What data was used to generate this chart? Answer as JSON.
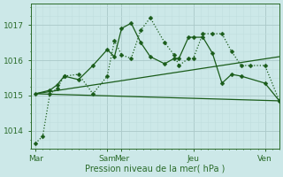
{
  "xlabel": "Pression niveau de la mer( hPa )",
  "background_color": "#cce8e8",
  "plot_bg_color": "#cce8e8",
  "grid_color_major": "#aac8c8",
  "grid_color_minor": "#c0dede",
  "text_color": "#2a6b2a",
  "ylim": [
    1013.5,
    1017.6
  ],
  "yticks": [
    1014,
    1015,
    1016,
    1017
  ],
  "day_labels": [
    "Mar",
    "Sam",
    "Mer",
    "Jeu",
    "Ven"
  ],
  "day_positions": [
    0,
    60,
    72,
    132,
    192
  ],
  "xlim": [
    -4,
    204
  ],
  "line_color": "#1a5c1a",
  "series": [
    {
      "x": [
        0,
        6,
        12,
        18,
        24,
        36,
        48,
        60,
        66,
        72,
        80,
        88,
        96,
        108,
        116,
        120,
        128,
        132,
        140,
        148,
        156,
        164,
        172,
        180,
        192,
        204
      ],
      "y": [
        1013.65,
        1013.85,
        1015.05,
        1015.2,
        1015.55,
        1015.6,
        1015.05,
        1015.55,
        1016.55,
        1016.15,
        1016.05,
        1016.85,
        1017.2,
        1016.5,
        1016.15,
        1015.85,
        1016.05,
        1016.05,
        1016.75,
        1016.75,
        1016.75,
        1016.25,
        1015.85,
        1015.85,
        1015.85,
        1014.85
      ],
      "linestyle": "dotted",
      "marker": "D",
      "markersize": 2.5
    },
    {
      "x": [
        0,
        12,
        18,
        24,
        36,
        48,
        60,
        66,
        72,
        80,
        88,
        96,
        108,
        116,
        120,
        128,
        132,
        140,
        148,
        156,
        164,
        172,
        192,
        204
      ],
      "y": [
        1015.05,
        1015.15,
        1015.3,
        1015.55,
        1015.45,
        1015.85,
        1016.3,
        1016.1,
        1016.9,
        1017.05,
        1016.5,
        1016.1,
        1015.9,
        1016.05,
        1016.05,
        1016.65,
        1016.65,
        1016.65,
        1016.2,
        1015.35,
        1015.6,
        1015.55,
        1015.35,
        1014.85
      ],
      "linestyle": "solid",
      "marker": "D",
      "markersize": 2.5
    },
    {
      "x": [
        0,
        204
      ],
      "y": [
        1015.05,
        1016.1
      ],
      "linestyle": "solid",
      "marker": null,
      "markersize": 0
    },
    {
      "x": [
        0,
        204
      ],
      "y": [
        1015.05,
        1014.85
      ],
      "linestyle": "solid",
      "marker": null,
      "markersize": 0
    }
  ]
}
